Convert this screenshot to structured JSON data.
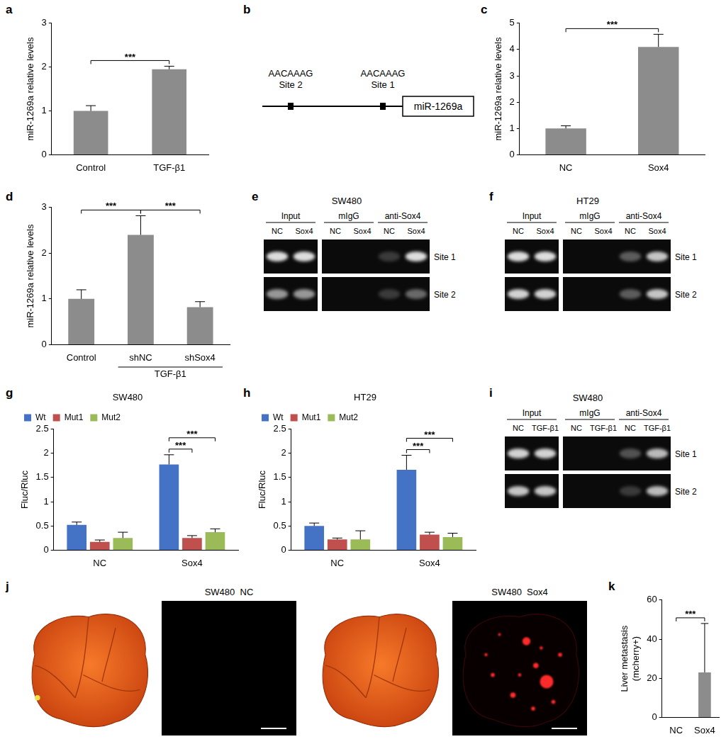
{
  "chart_data": [
    {
      "panel": "a",
      "type": "bar",
      "categories": [
        "Control",
        "TGF-β1"
      ],
      "values": [
        1.0,
        1.95
      ],
      "errors": [
        0.12,
        0.07
      ],
      "color": "#8c8c8c",
      "y_label": "miR-1269a relative levels",
      "ylim": [
        0,
        3
      ],
      "yticks": [
        0,
        1,
        2,
        3
      ],
      "grid": false,
      "annotations": [
        {
          "text": "***",
          "from": 0,
          "to": 1
        }
      ]
    },
    {
      "panel": "c",
      "type": "bar",
      "categories": [
        "NC",
        "Sox4"
      ],
      "values": [
        1.0,
        4.1
      ],
      "errors": [
        0.1,
        0.48
      ],
      "color": "#8c8c8c",
      "y_label": "miR-1269a relative levels",
      "ylim": [
        0,
        5
      ],
      "yticks": [
        0,
        1,
        2,
        3,
        4,
        5
      ],
      "grid": false,
      "annotations": [
        {
          "text": "***",
          "from": 0,
          "to": 1
        }
      ]
    },
    {
      "panel": "d",
      "type": "bar",
      "categories": [
        "Control",
        "shNC",
        "shSox4"
      ],
      "values": [
        1.0,
        2.4,
        0.82
      ],
      "errors": [
        0.2,
        0.42,
        0.12
      ],
      "color": "#8c8c8c",
      "y_label": "miR-1269a relative levels",
      "ylim": [
        0,
        3
      ],
      "yticks": [
        0,
        1,
        2,
        3
      ],
      "grid": false,
      "annotations": [
        {
          "text": "***",
          "from": 0,
          "to": 1
        },
        {
          "text": "***",
          "from": 1,
          "to": 2
        },
        {
          "text": "TGF-β1",
          "under": [
            1,
            2
          ]
        }
      ]
    },
    {
      "panel": "g",
      "type": "bar",
      "title": "SW480",
      "categories": [
        "NC",
        "Sox4"
      ],
      "series": [
        {
          "name": "Wt",
          "color": "#4472c4",
          "values": [
            0.52,
            1.77
          ],
          "errors": [
            0.06,
            0.2
          ]
        },
        {
          "name": "Mut1",
          "color": "#c0504d",
          "values": [
            0.17,
            0.25
          ],
          "errors": [
            0.04,
            0.05
          ]
        },
        {
          "name": "Mut2",
          "color": "#9bbb59",
          "values": [
            0.25,
            0.37
          ],
          "errors": [
            0.12,
            0.07
          ]
        }
      ],
      "y_label": "Fluc/Rluc",
      "ylim": [
        0,
        2.5
      ],
      "yticks": [
        0,
        0.5,
        1,
        1.5,
        2,
        2.5
      ],
      "grid": false,
      "legend": "top",
      "annotations": [
        {
          "text": "***",
          "category": 1,
          "from": 0,
          "to": 1
        },
        {
          "text": "***",
          "category": 1,
          "from": 0,
          "to": 2
        }
      ]
    },
    {
      "panel": "h",
      "type": "bar",
      "title": "HT29",
      "categories": [
        "NC",
        "Sox4"
      ],
      "series": [
        {
          "name": "Wt",
          "color": "#4472c4",
          "values": [
            0.5,
            1.66
          ],
          "errors": [
            0.06,
            0.3
          ]
        },
        {
          "name": "Mut1",
          "color": "#c0504d",
          "values": [
            0.22,
            0.32
          ],
          "errors": [
            0.03,
            0.05
          ]
        },
        {
          "name": "Mut2",
          "color": "#9bbb59",
          "values": [
            0.22,
            0.27
          ],
          "errors": [
            0.18,
            0.08
          ]
        }
      ],
      "y_label": "Fluc/Rluc",
      "ylim": [
        0,
        2.5
      ],
      "yticks": [
        0,
        0.5,
        1,
        1.5,
        2,
        2.5
      ],
      "grid": false,
      "legend": "top",
      "annotations": [
        {
          "text": "***",
          "category": 1,
          "from": 0,
          "to": 1
        },
        {
          "text": "***",
          "category": 1,
          "from": 0,
          "to": 2
        }
      ]
    },
    {
      "panel": "k",
      "type": "bar",
      "categories": [
        "NC",
        "Sox4"
      ],
      "values": [
        0,
        23
      ],
      "errors": [
        0,
        25
      ],
      "color": "#8c8c8c",
      "y_label": [
        "Liver metastasis",
        "(mcherry+)"
      ],
      "ylim": [
        0,
        60
      ],
      "yticks": [
        0,
        20,
        40,
        60
      ],
      "grid": false,
      "annotations": [
        {
          "text": "***",
          "from": 0,
          "to": 1
        }
      ]
    }
  ],
  "diagram": {
    "panel": "b",
    "gene": "miR-1269a",
    "sites": [
      {
        "label": "Site 2",
        "motif": "AACAAAG"
      },
      {
        "label": "Site 1",
        "motif": "AACAAAG"
      }
    ]
  },
  "gels": [
    {
      "panel": "e",
      "title": "SW480",
      "groups": [
        "Input",
        "mIgG",
        "anti-Sox4"
      ],
      "lanes": [
        "NC",
        "Sox4"
      ],
      "rows": [
        {
          "label": "Site 1",
          "bands": [
            0.9,
            0.9,
            0,
            0,
            0.2,
            0.9
          ]
        },
        {
          "label": "Site 2",
          "bands": [
            0.6,
            0.6,
            0,
            0,
            0.2,
            0.4
          ]
        }
      ]
    },
    {
      "panel": "f",
      "title": "HT29",
      "groups": [
        "Input",
        "mIgG",
        "anti-Sox4"
      ],
      "lanes": [
        "NC",
        "Sox4"
      ],
      "rows": [
        {
          "label": "Site 1",
          "bands": [
            0.9,
            0.9,
            0,
            0,
            0.35,
            0.8
          ]
        },
        {
          "label": "Site 2",
          "bands": [
            0.85,
            0.85,
            0,
            0,
            0.35,
            0.8
          ]
        }
      ]
    },
    {
      "panel": "i",
      "title": "SW480",
      "groups": [
        "Input",
        "mIgG",
        "anti-Sox4"
      ],
      "lanes": [
        "NC",
        "TGF-β1"
      ],
      "rows": [
        {
          "label": "Site 1",
          "bands": [
            0.85,
            0.85,
            0,
            0,
            0.3,
            0.75
          ]
        },
        {
          "label": "Site 2",
          "bands": [
            0.8,
            0.8,
            0,
            0,
            0.2,
            0.75
          ]
        }
      ]
    }
  ],
  "images": {
    "panel": "j",
    "panels": [
      {
        "title": "SW480  NC"
      },
      {
        "title": "SW480  Sox4"
      }
    ]
  }
}
